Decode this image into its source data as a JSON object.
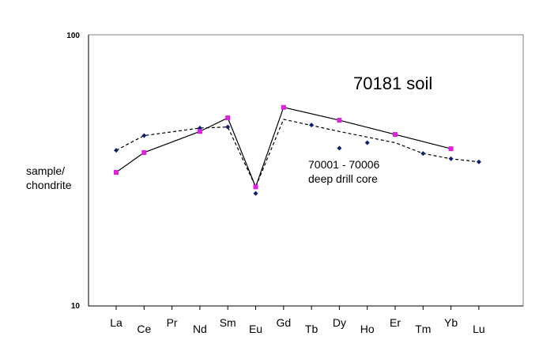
{
  "chart_data": {
    "type": "line",
    "title": "",
    "xlabel": "",
    "ylabel": "sample/\nchondrite",
    "ylabel_lines": [
      "sample/",
      "chondrite"
    ],
    "yscale": "log",
    "ylim": [
      10,
      100
    ],
    "yticks": [
      "10",
      "100"
    ],
    "grid": false,
    "categories": [
      "La",
      "Ce",
      "Pr",
      "Nd",
      "Sm",
      "Eu",
      "Gd",
      "Tb",
      "Dy",
      "Ho",
      "Er",
      "Tm",
      "Yb",
      "Lu"
    ],
    "annotations": [
      {
        "text": "70181 soil",
        "near": "upper-right"
      },
      {
        "text": "70001 - 70006",
        "near": "center-right"
      },
      {
        "text": "deep drill core",
        "near": "center-right"
      }
    ],
    "series": [
      {
        "name": "70181 soil",
        "color": "#e020e0",
        "line_color": "#000000",
        "line_style": "solid",
        "marker": "square",
        "points": [
          {
            "x": "La",
            "y": 31.1
          },
          {
            "x": "Ce",
            "y": 36.8
          },
          {
            "x": "Nd",
            "y": 44.0
          },
          {
            "x": "Sm",
            "y": 49.4
          },
          {
            "x": "Eu",
            "y": 27.5
          },
          {
            "x": "Gd",
            "y": 54.0
          },
          {
            "x": "Dy",
            "y": 48.4
          },
          {
            "x": "Er",
            "y": 42.9
          },
          {
            "x": "Yb",
            "y": 38.0
          }
        ]
      },
      {
        "name": "70001 - 70006 deep drill core",
        "color": "#0a1f6e",
        "line_color": "#000000",
        "line_style": "dashed",
        "marker": "diamond",
        "points": [
          {
            "x": "La",
            "y": 37.5
          },
          {
            "x": "Ce",
            "y": 42.5
          },
          {
            "x": "Nd",
            "y": 45.3
          },
          {
            "x": "Sm",
            "y": 45.7
          },
          {
            "x": "Eu",
            "y": 26.0
          },
          {
            "x": "Tb",
            "y": 46.5
          },
          {
            "x": "Dy",
            "y": 38.2
          },
          {
            "x": "Ho",
            "y": 40.0
          },
          {
            "x": "Tm",
            "y": 36.5
          },
          {
            "x": "Yb",
            "y": 34.9
          },
          {
            "x": "Lu",
            "y": 34.0
          }
        ],
        "trend_line": [
          {
            "x": "La",
            "y": 37.5
          },
          {
            "x": "Ce",
            "y": 42.5
          },
          {
            "x": "Nd",
            "y": 45.3
          },
          {
            "x": "Sm",
            "y": 45.7
          },
          {
            "x": "Eu",
            "y": 27.5
          },
          {
            "x": "Gd",
            "y": 48.8
          },
          {
            "x": "Dy",
            "y": 44.0
          },
          {
            "x": "Er",
            "y": 40.0
          },
          {
            "x": "Tm",
            "y": 36.5
          },
          {
            "x": "Yb",
            "y": 34.9
          },
          {
            "x": "Lu",
            "y": 34.0
          }
        ]
      }
    ]
  }
}
